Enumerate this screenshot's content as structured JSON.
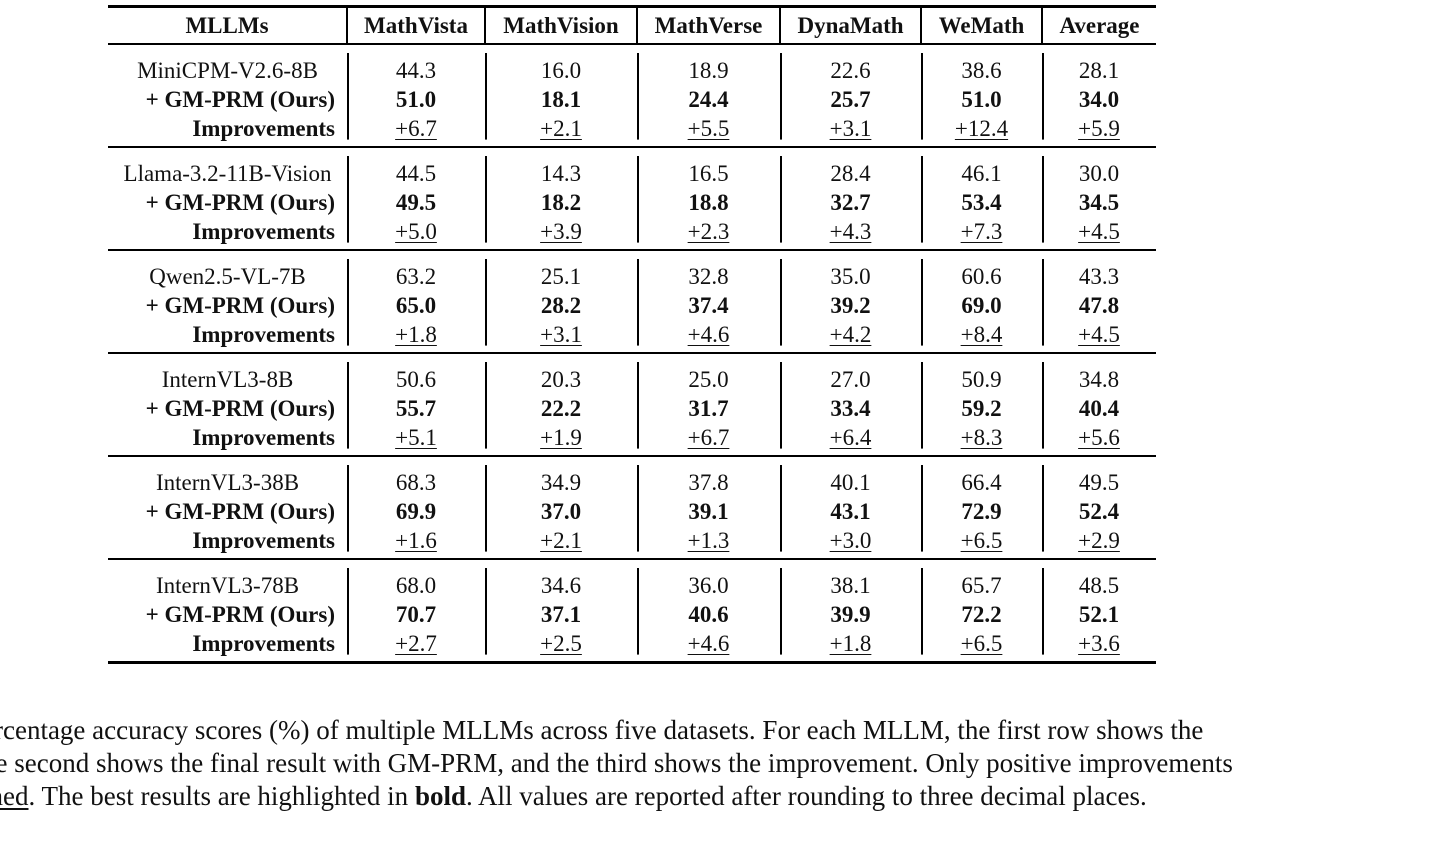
{
  "table": {
    "headers": [
      "MLLMs",
      "MathVista",
      "MathVision",
      "MathVerse",
      "DynaMath",
      "WeMath",
      "Average"
    ],
    "groups": [
      {
        "model": "MiniCPM-V2.6-8B",
        "with_label": "+ GM-PRM (Ours)",
        "improvement_label": "Improvements",
        "base": [
          "44.3",
          "16.0",
          "18.9",
          "22.6",
          "38.6",
          "28.1"
        ],
        "with_prm": [
          "51.0",
          "18.1",
          "24.4",
          "25.7",
          "51.0",
          "34.0"
        ],
        "improvements": [
          "+6.7",
          "+2.1",
          "+5.5",
          "+3.1",
          "+12.4",
          "+5.9"
        ]
      },
      {
        "model": "Llama-3.2-11B-Vision",
        "with_label": "+ GM-PRM (Ours)",
        "improvement_label": "Improvements",
        "base": [
          "44.5",
          "14.3",
          "16.5",
          "28.4",
          "46.1",
          "30.0"
        ],
        "with_prm": [
          "49.5",
          "18.2",
          "18.8",
          "32.7",
          "53.4",
          "34.5"
        ],
        "improvements": [
          "+5.0",
          "+3.9",
          "+2.3",
          "+4.3",
          "+7.3",
          "+4.5"
        ]
      },
      {
        "model": "Qwen2.5-VL-7B",
        "with_label": "+ GM-PRM (Ours)",
        "improvement_label": "Improvements",
        "base": [
          "63.2",
          "25.1",
          "32.8",
          "35.0",
          "60.6",
          "43.3"
        ],
        "with_prm": [
          "65.0",
          "28.2",
          "37.4",
          "39.2",
          "69.0",
          "47.8"
        ],
        "improvements": [
          "+1.8",
          "+3.1",
          "+4.6",
          "+4.2",
          "+8.4",
          "+4.5"
        ]
      },
      {
        "model": "InternVL3-8B",
        "with_label": "+ GM-PRM (Ours)",
        "improvement_label": "Improvements",
        "base": [
          "50.6",
          "20.3",
          "25.0",
          "27.0",
          "50.9",
          "34.8"
        ],
        "with_prm": [
          "55.7",
          "22.2",
          "31.7",
          "33.4",
          "59.2",
          "40.4"
        ],
        "improvements": [
          "+5.1",
          "+1.9",
          "+6.7",
          "+6.4",
          "+8.3",
          "+5.6"
        ]
      },
      {
        "model": "InternVL3-38B",
        "with_label": "+ GM-PRM (Ours)",
        "improvement_label": "Improvements",
        "base": [
          "68.3",
          "34.9",
          "37.8",
          "40.1",
          "66.4",
          "49.5"
        ],
        "with_prm": [
          "69.9",
          "37.0",
          "39.1",
          "43.1",
          "72.9",
          "52.4"
        ],
        "improvements": [
          "+1.6",
          "+2.1",
          "+1.3",
          "+3.0",
          "+6.5",
          "+2.9"
        ]
      },
      {
        "model": "InternVL3-78B",
        "with_label": "+ GM-PRM (Ours)",
        "improvement_label": "Improvements",
        "base": [
          "68.0",
          "34.6",
          "36.0",
          "38.1",
          "65.7",
          "48.5"
        ],
        "with_prm": [
          "70.7",
          "37.1",
          "40.6",
          "39.9",
          "72.2",
          "52.1"
        ],
        "improvements": [
          "+2.7",
          "+2.5",
          "+4.6",
          "+1.8",
          "+6.5",
          "+3.6"
        ]
      }
    ]
  },
  "caption": {
    "line1": "ercentage accuracy scores (%) of multiple MLLMs across five datasets. For each MLLM, the first row shows the",
    "line2": "he second shows the final result with GM-PRM, and the third shows the improvement. Only positive improvements",
    "line3_underlined": "ined",
    "line3_a": ". The best results are highlighted in ",
    "line3_bold": "bold",
    "line3_b": ". All values are reported after rounding to three decimal places."
  }
}
